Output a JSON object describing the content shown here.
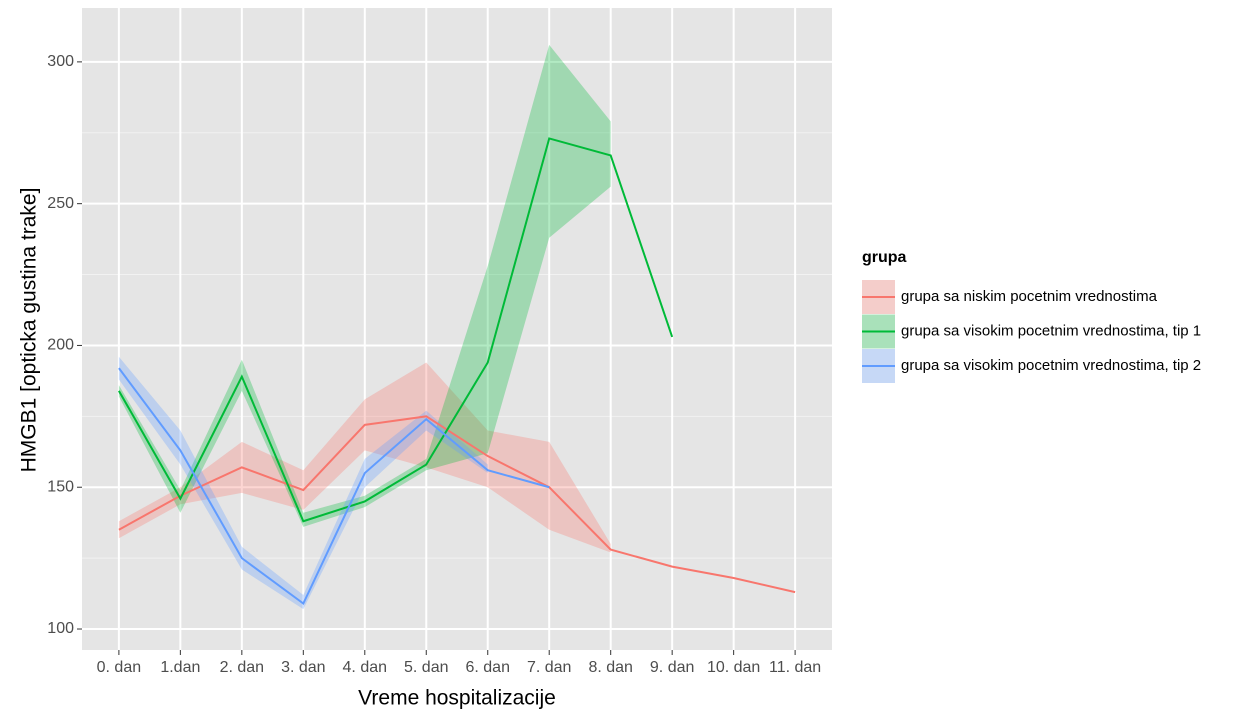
{
  "chart_data": {
    "type": "line",
    "x_label": "Vreme hospitalizacije",
    "y_label": "HMGB1 [opticka gustina trake]",
    "legend_title": "grupa",
    "legend": "right",
    "grid": true,
    "categories": [
      "0. dan",
      "1.dan",
      "2. dan",
      "3. dan",
      "4. dan",
      "5. dan",
      "6. dan",
      "7. dan",
      "8. dan",
      "9. dan",
      "10. dan",
      "11. dan"
    ],
    "ylim": [
      92.6,
      319
    ],
    "yticks": [
      100,
      150,
      200,
      250,
      300
    ],
    "series": [
      {
        "name": "grupa sa niskim pocetnim vrednostima",
        "color": "#F8766D",
        "values": [
          135,
          147,
          157,
          149,
          172,
          175,
          161,
          150,
          128,
          122,
          118,
          113
        ],
        "lower": [
          132,
          144,
          148,
          142,
          163,
          157,
          150,
          135,
          127,
          null,
          null,
          null
        ],
        "upper": [
          138,
          150,
          166,
          156,
          181,
          194,
          170,
          166,
          130,
          null,
          null,
          null
        ]
      },
      {
        "name": "grupa sa visokim pocetnim vrednostima, tip 1",
        "color": "#00BA38",
        "values": [
          184,
          146,
          189,
          138,
          145,
          158,
          194,
          273,
          267,
          203,
          null,
          null
        ],
        "lower": [
          182,
          141,
          184,
          136,
          143,
          156,
          162,
          238,
          256,
          null,
          null,
          null
        ],
        "upper": [
          186,
          149,
          195,
          141,
          147,
          160,
          228,
          306,
          279,
          null,
          null,
          null
        ]
      },
      {
        "name": "grupa sa visokim pocetnim vrednostima, tip 2",
        "color": "#619CFF",
        "values": [
          192,
          163,
          125,
          109,
          155,
          174,
          156,
          150,
          null,
          null,
          null,
          null
        ],
        "lower": [
          188,
          158,
          121,
          107,
          150,
          170,
          155,
          null,
          null,
          null,
          null,
          null
        ],
        "upper": [
          196,
          170,
          129,
          112,
          160,
          177,
          158,
          null,
          null,
          null,
          null,
          null
        ]
      }
    ]
  }
}
